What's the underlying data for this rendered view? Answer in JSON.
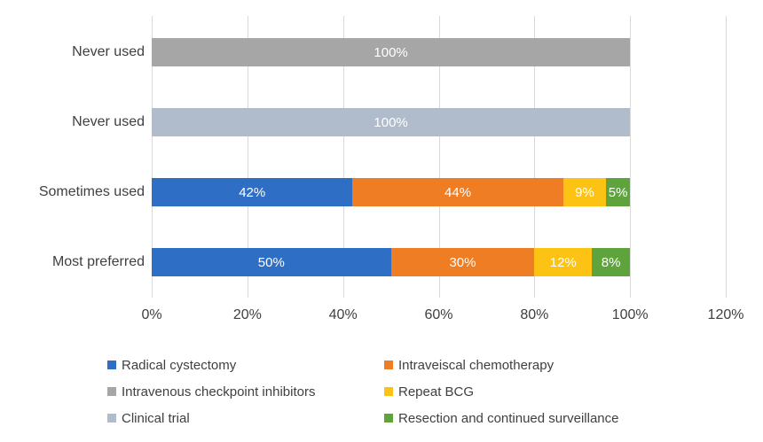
{
  "chart_data": {
    "type": "bar",
    "orientation": "horizontal",
    "stacked": true,
    "title": "",
    "xlabel": "",
    "ylabel": "",
    "xlim": [
      0,
      120
    ],
    "x_ticks": [
      "0%",
      "20%",
      "40%",
      "60%",
      "80%",
      "100%",
      "120%"
    ],
    "grid": true,
    "legend_position": "bottom",
    "background_color": "#FFFFFF",
    "gridline_color": "#D9D9D9",
    "text_color": "#404040",
    "data_label_color": "#FFFFFF",
    "categories": [
      "Never used",
      "Never used",
      "Sometimes used",
      "Most preferred"
    ],
    "series": [
      {
        "name": "Radical cystectomy",
        "color": "#2F6EC5",
        "values": [
          0,
          0,
          42,
          50
        ]
      },
      {
        "name": "Intraveiscal chemotherapy",
        "color": "#EE7D23",
        "values": [
          0,
          0,
          44,
          30
        ]
      },
      {
        "name": "Intravenous checkpoint inhibitors",
        "color": "#A6A6A6",
        "values": [
          100,
          0,
          0,
          0
        ]
      },
      {
        "name": "Repeat BCG",
        "color": "#FDC314",
        "values": [
          0,
          0,
          9,
          12
        ]
      },
      {
        "name": "Clinical trial",
        "color": "#B0BCCC",
        "values": [
          0,
          100,
          0,
          0
        ]
      },
      {
        "name": "Resection and continued surveillance",
        "color": "#5FA33C",
        "values": [
          0,
          0,
          5,
          8
        ]
      }
    ],
    "rows": [
      {
        "category": "Never used",
        "segments": [
          {
            "series": "Intravenous checkpoint inhibitors",
            "value": 100,
            "label": "100%",
            "color": "#A6A6A6"
          }
        ]
      },
      {
        "category": "Never used",
        "segments": [
          {
            "series": "Clinical trial",
            "value": 100,
            "label": "100%",
            "color": "#B0BCCC"
          }
        ]
      },
      {
        "category": "Sometimes used",
        "segments": [
          {
            "series": "Radical cystectomy",
            "value": 42,
            "label": "42%",
            "color": "#2F6EC5"
          },
          {
            "series": "Intraveiscal chemotherapy",
            "value": 44,
            "label": "44%",
            "color": "#EE7D23"
          },
          {
            "series": "Repeat BCG",
            "value": 9,
            "label": "9%",
            "color": "#FDC314"
          },
          {
            "series": "Resection and continued surveillance",
            "value": 5,
            "label": "5%",
            "color": "#5FA33C"
          }
        ]
      },
      {
        "category": "Most preferred",
        "segments": [
          {
            "series": "Radical cystectomy",
            "value": 50,
            "label": "50%",
            "color": "#2F6EC5"
          },
          {
            "series": "Intraveiscal chemotherapy",
            "value": 30,
            "label": "30%",
            "color": "#EE7D23"
          },
          {
            "series": "Repeat BCG",
            "value": 12,
            "label": "12%",
            "color": "#FDC314"
          },
          {
            "series": "Resection and continued surveillance",
            "value": 8,
            "label": "8%",
            "color": "#5FA33C"
          }
        ]
      }
    ],
    "legend_items": [
      {
        "label": "Radical cystectomy",
        "color": "#2F6EC5"
      },
      {
        "label": "Intraveiscal chemotherapy",
        "color": "#EE7D23"
      },
      {
        "label": "Intravenous checkpoint inhibitors",
        "color": "#A6A6A6"
      },
      {
        "label": "Repeat BCG",
        "color": "#FDC314"
      },
      {
        "label": "Clinical trial",
        "color": "#B0BCCC"
      },
      {
        "label": "Resection and continued surveillance",
        "color": "#5FA33C"
      }
    ]
  }
}
